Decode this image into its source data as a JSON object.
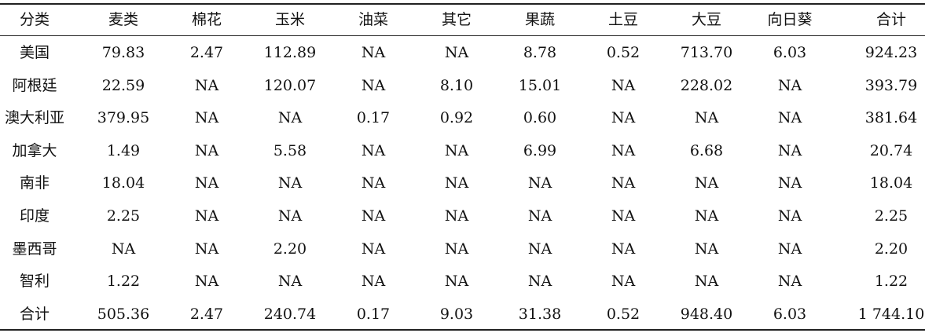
{
  "table": {
    "header": [
      "分类",
      "麦类",
      "棉花",
      "玉米",
      "油菜",
      "其它",
      "果蔬",
      "土豆",
      "大豆",
      "向日葵",
      "合计"
    ],
    "rows": [
      [
        "美国",
        "79.83",
        "2.47",
        "112.89",
        "NA",
        "NA",
        "8.78",
        "0.52",
        "713.70",
        "6.03",
        "924.23"
      ],
      [
        "阿根廷",
        "22.59",
        "NA",
        "120.07",
        "NA",
        "8.10",
        "15.01",
        "NA",
        "228.02",
        "NA",
        "393.79"
      ],
      [
        "澳大利亚",
        "379.95",
        "NA",
        "NA",
        "0.17",
        "0.92",
        "0.60",
        "NA",
        "NA",
        "NA",
        "381.64"
      ],
      [
        "加拿大",
        "1.49",
        "NA",
        "5.58",
        "NA",
        "NA",
        "6.99",
        "NA",
        "6.68",
        "NA",
        "20.74"
      ],
      [
        "南非",
        "18.04",
        "NA",
        "NA",
        "NA",
        "NA",
        "NA",
        "NA",
        "NA",
        "NA",
        "18.04"
      ],
      [
        "印度",
        "2.25",
        "NA",
        "NA",
        "NA",
        "NA",
        "NA",
        "NA",
        "NA",
        "NA",
        "2.25"
      ],
      [
        "墨西哥",
        "NA",
        "NA",
        "2.20",
        "NA",
        "NA",
        "NA",
        "NA",
        "NA",
        "NA",
        "2.20"
      ],
      [
        "智利",
        "1.22",
        "NA",
        "NA",
        "NA",
        "NA",
        "NA",
        "NA",
        "NA",
        "NA",
        "1.22"
      ],
      [
        "合计",
        "505.36",
        "2.47",
        "240.74",
        "0.17",
        "9.03",
        "31.38",
        "0.52",
        "948.40",
        "6.03",
        "1 744.10"
      ]
    ]
  }
}
